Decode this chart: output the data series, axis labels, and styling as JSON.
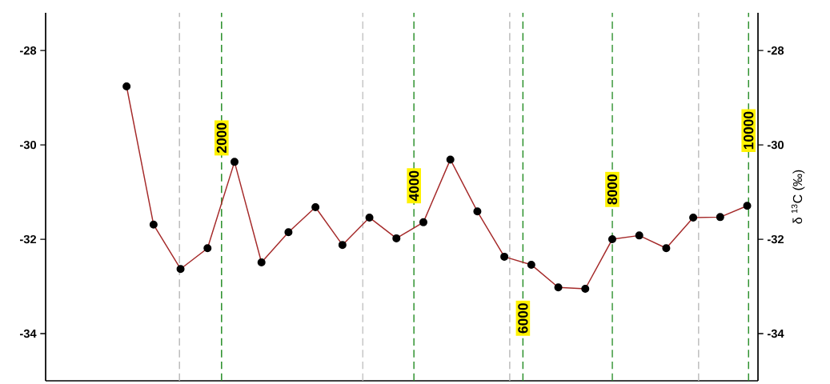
{
  "chart_data": {
    "type": "line",
    "y2label": "δ $^{13}$C (‰)",
    "categories": [
      null,
      null,
      null,
      null,
      null,
      null,
      null,
      null,
      null,
      null,
      null,
      null,
      null,
      null,
      null,
      null,
      null,
      null,
      null,
      null,
      null,
      null,
      null,
      null
    ],
    "series": [
      {
        "color": "#a52a2a",
        "values": [
          -28.76,
          -31.69,
          -32.63,
          -32.19,
          -30.36,
          -32.49,
          -31.85,
          -31.32,
          -32.12,
          -31.54,
          -31.98,
          -31.64,
          -30.31,
          -31.41,
          -32.37,
          -32.54,
          -33.02,
          -33.05,
          -32.0,
          -31.92,
          -32.19,
          -31.54,
          -31.53,
          -31.29
        ]
      }
    ],
    "marker": "circle",
    "line_style": "solid",
    "ylim": [
      -35,
      -27.2
    ],
    "y2lim": [
      -35,
      -27.2
    ],
    "yticks": [
      -34,
      -32,
      -30,
      -28
    ],
    "y2ticks": [
      -34,
      -32,
      -30,
      -28
    ],
    "annotations": [
      "2000",
      "4000",
      "6000",
      "8000",
      "10000"
    ]
  }
}
